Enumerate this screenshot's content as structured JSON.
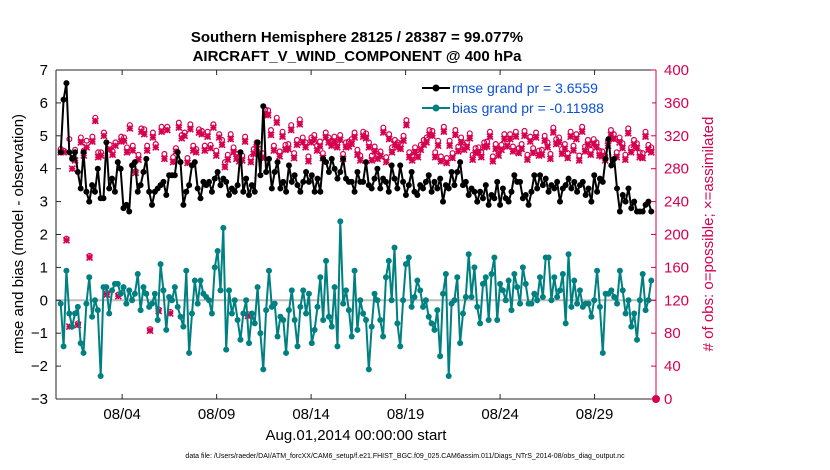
{
  "chart_data": {
    "type": "line",
    "title": "Southern Hemisphere 28125 / 28387 = 99.077%",
    "subtitle": "AIRCRAFT_V_WIND_COMPONENT @ 400 hPa",
    "xlabel": "Aug.01,2014 00:00:00 start",
    "ylabel": "rmse and bias (model - observation)",
    "y2label": "# of obs: o=possible; ×=assimilated",
    "footnote": "data file: /Users/raeder/DAI/ATM_forcXX/CAM6_setup/f.e21.FHIST_BGC.f09_025.CAM6assim.011/Diags_NTrS_2014-08/obs_diag_output.nc",
    "xlim": [
      0.5,
      32.25
    ],
    "ylim": [
      -3,
      7
    ],
    "y2lim": [
      0,
      400
    ],
    "xtick_days": [
      4,
      9,
      14,
      19,
      24,
      29
    ],
    "xtick_labels": [
      "08/04",
      "08/09",
      "08/14",
      "08/19",
      "08/24",
      "08/29"
    ],
    "yticks": [
      -3,
      -2,
      -1,
      0,
      1,
      2,
      3,
      4,
      5,
      6,
      7
    ],
    "y2ticks": [
      0,
      40,
      80,
      120,
      160,
      200,
      240,
      280,
      320,
      360,
      400
    ],
    "legend": [
      {
        "name": "rmse grand pr = 3.6559",
        "color": "#000000"
      },
      {
        "name": "bias grand pr = -0.11988",
        "color": "#008080"
      }
    ],
    "series": [
      {
        "name": "rmse",
        "color": "#000000",
        "values": [
          4.5,
          6.1,
          6.6,
          4.5,
          4.3,
          4.5,
          3.9,
          3.4,
          4.5,
          3.3,
          3.0,
          3.5,
          3.3,
          4.0,
          3.1,
          3.1,
          4.8,
          3.4,
          3.7,
          3.3,
          4.2,
          4.0,
          2.8,
          2.9,
          2.7,
          4.1,
          4.2,
          3.3,
          3.5,
          3.9,
          4.3,
          3.3,
          2.9,
          3.3,
          3.4,
          3.5,
          3.6,
          3.2,
          3.8,
          3.8,
          3.8,
          4.5,
          4.2,
          2.9,
          3.3,
          3.5,
          4.1,
          4.2,
          3.4,
          3.1,
          3.6,
          3.5,
          3.6,
          3.3,
          3.7,
          3.9,
          3.5,
          3.7,
          3.6,
          3.2,
          3.4,
          3.3,
          3.5,
          4.5,
          3.3,
          3.7,
          3.2,
          3.5,
          3.3,
          4.8,
          3.8,
          5.9,
          3.9,
          4.3,
          3.4,
          3.9,
          4.2,
          3.4,
          3.6,
          3.3,
          4.1,
          3.6,
          3.8,
          3.5,
          3.3,
          3.6,
          3.9,
          3.6,
          3.8,
          3.3,
          3.7,
          3.3,
          4.3,
          4.2,
          3.9,
          4.3,
          4.0,
          3.7,
          3.9,
          4.3,
          3.7,
          3.6,
          3.6,
          3.3,
          3.9,
          3.6,
          3.6,
          4.2,
          3.5,
          3.4,
          3.7,
          4.0,
          3.4,
          3.7,
          3.6,
          3.3,
          4.1,
          3.7,
          3.4,
          4.1,
          3.6,
          3.2,
          3.5,
          3.9,
          3.3,
          3.2,
          3.5,
          3.4,
          3.6,
          3.8,
          3.3,
          3.6,
          3.4,
          3.7,
          3.0,
          3.5,
          3.4,
          3.9,
          3.5,
          3.9,
          4.2,
          3.5,
          3.6,
          3.2,
          3.4,
          3.3,
          3.0,
          3.3,
          3.1,
          3.5,
          2.9,
          3.2,
          3.1,
          3.6,
          2.9,
          3.4,
          3.1,
          3.0,
          3.3,
          3.8,
          3.6,
          3.6,
          3.1,
          3.2,
          2.9,
          3.3,
          3.8,
          3.4,
          3.8,
          3.5,
          3.7,
          3.3,
          3.5,
          3.4,
          3.6,
          3.0,
          3.4,
          3.5,
          3.7,
          3.4,
          3.6,
          3.3,
          3.5,
          3.6,
          3.2,
          3.4,
          3.0,
          3.8,
          3.3,
          3.7,
          3.6,
          4.3,
          4.9,
          4.1,
          4.3,
          3.4,
          2.7,
          3.2,
          3.0,
          3.4,
          2.8,
          3.0,
          2.7,
          2.7,
          2.7,
          2.9,
          3.0,
          2.7
        ]
      },
      {
        "name": "bias",
        "color": "#008080",
        "values": [
          -0.1,
          -1.4,
          0.9,
          -0.4,
          -0.8,
          -0.4,
          -0.2,
          -1.3,
          -1.6,
          -0.1,
          0.7,
          -0.5,
          0.0,
          -0.3,
          -2.3,
          0.4,
          0.4,
          -0.4,
          0.3,
          0.5,
          0.5,
          0.2,
          0.4,
          -0.1,
          0.3,
          0.0,
          0.2,
          0.8,
          -0.3,
          0.4,
          0.2,
          -0.2,
          -0.1,
          0.2,
          -0.6,
          1.1,
          0.3,
          -0.9,
          0.1,
          0.0,
          0.4,
          -0.2,
          -0.5,
          -0.8,
          0.9,
          -1.6,
          -0.4,
          0.6,
          -0.1,
          0.6,
          0.2,
          0.1,
          0.0,
          -0.4,
          1.0,
          1.5,
          0.3,
          2.2,
          -1.5,
          0.3,
          -0.4,
          0.0,
          -0.6,
          -1.2,
          -0.4,
          0.0,
          -1.3,
          -0.4,
          -0.7,
          0.4,
          -1.0,
          -2.1,
          -0.3,
          0.9,
          -0.2,
          -0.1,
          -1.1,
          -0.5,
          -0.6,
          -1.6,
          -0.3,
          0.3,
          -0.6,
          -1.4,
          -0.2,
          0.3,
          -0.4,
          0.2,
          -1.3,
          -0.9,
          -0.2,
          0.7,
          -0.6,
          1.2,
          -0.5,
          -0.8,
          0.4,
          -1.4,
          2.4,
          -0.1,
          0.3,
          -0.3,
          -1.1,
          0.9,
          -0.9,
          0.0,
          -0.4,
          -0.6,
          -2.1,
          -0.8,
          0.2,
          0.0,
          -0.6,
          -1.1,
          0.7,
          1.2,
          0.0,
          1.6,
          -0.7,
          -1.4,
          0.0,
          1.1,
          1.3,
          -0.2,
          0.1,
          0.6,
          0.3,
          -0.2,
          0.0,
          -0.5,
          -0.7,
          -0.9,
          -0.3,
          -1.7,
          0.2,
          0.8,
          -2.3,
          -0.1,
          0.0,
          0.7,
          -1.3,
          -0.4,
          0.1,
          1.4,
          0.1,
          1.0,
          -0.2,
          -0.7,
          0.5,
          0.7,
          -0.6,
          0.8,
          1.3,
          -0.6,
          0.5,
          0.3,
          0.0,
          0.6,
          -0.3,
          0.8,
          0.4,
          -0.1,
          1.0,
          0.5,
          -0.1,
          -0.1,
          0.2,
          0.0,
          0.7,
          0.1,
          1.3,
          1.3,
          0.0,
          0.7,
          0.1,
          0.3,
          0.8,
          -0.7,
          1.4,
          -0.2,
          0.6,
          -0.1,
          0.3,
          -0.2,
          -0.1,
          -0.1,
          -0.5,
          0.0,
          0.9,
          -0.2,
          -1.6,
          0.2,
          0.2,
          0.3,
          0.1,
          -0.1,
          0.9,
          0.3,
          -0.4,
          0.0,
          -0.8,
          -0.4,
          -1.2,
          0.0,
          0.8,
          -0.3,
          0.0,
          0.6
        ]
      },
      {
        "name": "obs_possible",
        "color": "#d6004f",
        "values": [
          304,
          302,
          195,
          316,
          293,
          303,
          92,
          318,
          302,
          314,
          174,
          319,
          342,
          300,
          300,
          324,
          129,
          309,
          301,
          312,
          127,
          319,
          318,
          306,
          333,
          308,
          277,
          297,
          329,
          328,
          308,
          85,
          324,
          310,
          109,
          331,
          298,
          331,
          106,
          294,
          305,
          336,
          321,
          324,
          293,
          334,
          308,
          304,
          328,
          326,
          308,
          325,
          309,
          334,
          302,
          322,
          315,
          288,
          297,
          322,
          306,
          298,
          295,
          296,
          319,
          103,
          294,
          304,
          312,
          304,
          299,
          352,
          351,
          327,
          308,
          342,
          301,
          325,
          309,
          310,
          333,
          299,
          315,
          340,
          318,
          312,
          295,
          318,
          321,
          308,
          313,
          299,
          324,
          318,
          314,
          319,
          312,
          321,
          298,
          312,
          313,
          316,
          324,
          303,
          296,
          325,
          323,
          312,
          296,
          307,
          298,
          301,
          330,
          294,
          322,
          306,
          315,
          312,
          310,
          320,
          339,
          300,
          296,
          306,
          300,
          309,
          315,
          318,
          327,
          326,
          300,
          314,
          295,
          331,
          293,
          314,
          299,
          327,
          307,
          318,
          309,
          312,
          323,
          297,
          305,
          306,
          300,
          312,
          313,
          325,
          295,
          310,
          302,
          309,
          322,
          313,
          322,
          307,
          325,
          305,
          310,
          326,
          297,
          319,
          305,
          324,
          302,
          303,
          320,
          312,
          298,
          330,
          316,
          318,
          304,
          310,
          299,
          325,
          308,
          322,
          296,
          331,
          307,
          315,
          303,
          316,
          312,
          302,
          301,
          296,
          314,
          327,
          322,
          300,
          318,
          311,
          297,
          329,
          306,
          315,
          311,
          300,
          299,
          325,
          309,
          306
        ]
      },
      {
        "name": "obs_assimilated",
        "color": "#d6004f",
        "values": [
          300,
          300,
          193,
          88,
          280,
          290,
          90,
          312,
          296,
          306,
          172,
          313,
          338,
          294,
          296,
          320,
          127,
          303,
          297,
          308,
          125,
          313,
          314,
          300,
          329,
          302,
          275,
          291,
          325,
          322,
          302,
          83,
          318,
          306,
          107,
          325,
          292,
          327,
          104,
          288,
          301,
          330,
          317,
          320,
          287,
          328,
          302,
          300,
          324,
          322,
          302,
          319,
          305,
          330,
          296,
          318,
          309,
          282,
          291,
          316,
          300,
          292,
          289,
          290,
          313,
          101,
          288,
          298,
          306,
          298,
          293,
          346,
          345,
          321,
          302,
          336,
          295,
          319,
          303,
          304,
          327,
          293,
          309,
          334,
          312,
          306,
          289,
          312,
          315,
          302,
          307,
          293,
          318,
          312,
          308,
          313,
          306,
          315,
          292,
          306,
          307,
          310,
          318,
          297,
          290,
          319,
          317,
          306,
          290,
          301,
          292,
          295,
          324,
          288,
          316,
          300,
          309,
          306,
          304,
          314,
          333,
          294,
          290,
          300,
          294,
          303,
          309,
          312,
          321,
          320,
          294,
          308,
          289,
          325,
          287,
          308,
          293,
          321,
          301,
          312,
          303,
          306,
          317,
          291,
          299,
          300,
          294,
          306,
          307,
          319,
          289,
          304,
          296,
          303,
          316,
          307,
          316,
          301,
          319,
          299,
          304,
          320,
          291,
          313,
          299,
          318,
          296,
          297,
          314,
          306,
          292,
          324,
          310,
          312,
          298,
          304,
          293,
          319,
          302,
          316,
          290,
          325,
          301,
          309,
          297,
          310,
          306,
          296,
          295,
          290,
          308,
          321,
          316,
          294,
          312,
          305,
          291,
          323,
          300,
          309,
          305,
          294,
          293,
          319,
          303,
          300
        ]
      }
    ]
  }
}
